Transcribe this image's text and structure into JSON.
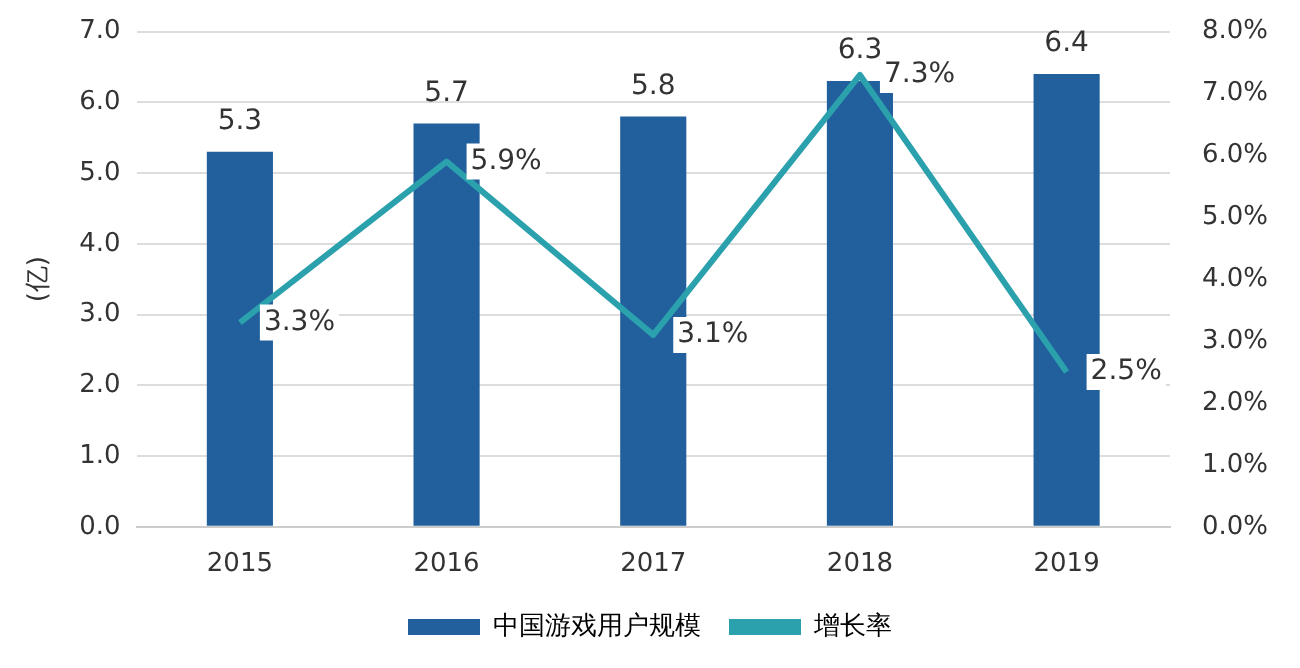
{
  "chart_data": {
    "type": "bar",
    "ylabel": "(亿)",
    "categories": [
      "2015",
      "2016",
      "2017",
      "2018",
      "2019"
    ],
    "series": [
      {
        "name": "中国游戏用户规模",
        "color": "#21609c",
        "values": [
          5.3,
          5.7,
          5.8,
          6.3,
          6.4
        ],
        "value_labels": [
          "5.3",
          "5.7",
          "5.8",
          "6.3",
          "6.4"
        ]
      },
      {
        "name": "增长率",
        "type": "line",
        "axis": "y2",
        "color": "#2ba1ad",
        "values": [
          3.3,
          5.9,
          3.1,
          7.3,
          2.5
        ],
        "value_labels": [
          "3.3%",
          "5.9%",
          "3.1%",
          "7.3%",
          "2.5%"
        ]
      }
    ],
    "ylim": [
      0,
      7
    ],
    "yticks": [
      {
        "value": 0,
        "label": "0.0"
      },
      {
        "value": 1,
        "label": "1.0"
      },
      {
        "value": 2,
        "label": "2.0"
      },
      {
        "value": 3,
        "label": "3.0"
      },
      {
        "value": 4,
        "label": "4.0"
      },
      {
        "value": 5,
        "label": "5.0"
      },
      {
        "value": 6,
        "label": "6.0"
      },
      {
        "value": 7,
        "label": "7.0"
      }
    ],
    "y2lim": [
      0,
      8
    ],
    "y2ticks": [
      {
        "value": 0,
        "label": "0.0%"
      },
      {
        "value": 1,
        "label": "1.0%"
      },
      {
        "value": 2,
        "label": "2.0%"
      },
      {
        "value": 3,
        "label": "3.0%"
      },
      {
        "value": 4,
        "label": "4.0%"
      },
      {
        "value": 5,
        "label": "5.0%"
      },
      {
        "value": 6,
        "label": "6.0%"
      },
      {
        "value": 7,
        "label": "7.0%"
      },
      {
        "value": 8,
        "label": "8.0%"
      }
    ],
    "grid": "y",
    "legend": "bottom",
    "marker": "none"
  }
}
